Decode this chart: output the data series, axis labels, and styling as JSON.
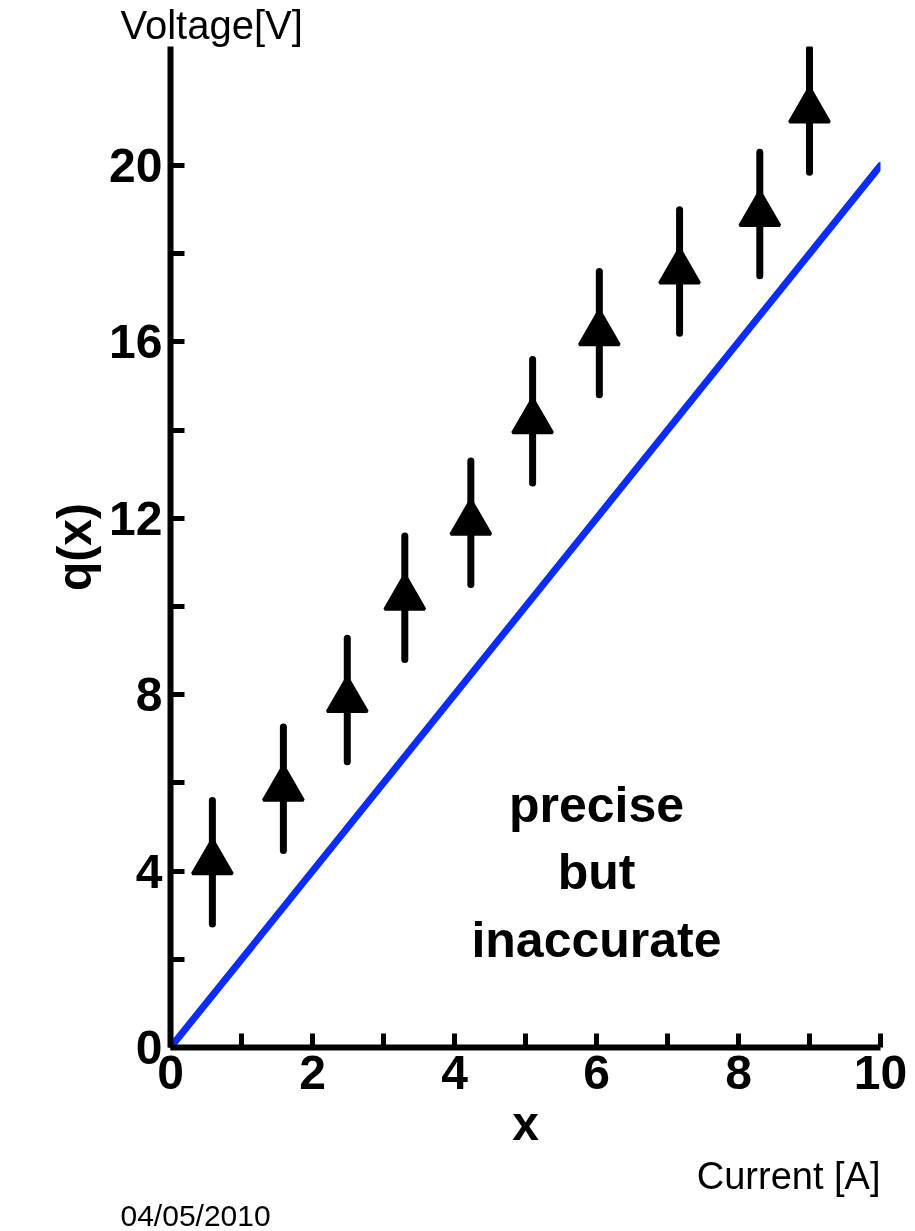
{
  "chart_data": {
    "type": "scatter",
    "xlabel": "x",
    "ylabel": "q(x)",
    "xlim": [
      0,
      10
    ],
    "ylim": [
      0,
      22.7
    ],
    "xticks": [
      0,
      {
        "value": 1,
        "label": null
      },
      2,
      {
        "value": 3,
        "label": null
      },
      4,
      {
        "value": 5,
        "label": null
      },
      6,
      {
        "value": 7,
        "label": null
      },
      8,
      {
        "value": 9,
        "label": null
      },
      10
    ],
    "yticks": [
      0,
      {
        "value": 2,
        "label": null
      },
      4,
      {
        "value": 6,
        "label": null
      },
      8,
      {
        "value": 10,
        "label": null
      },
      12,
      {
        "value": 14,
        "label": null
      },
      16,
      {
        "value": 18,
        "label": null
      },
      20
    ],
    "grid": false,
    "series": [
      {
        "type": "line",
        "color": "#0a2cff",
        "x": [
          0,
          10
        ],
        "values": [
          0,
          20
        ],
        "line_style": "solid"
      },
      {
        "type": "scatter",
        "marker": "triangle",
        "color": "#000000",
        "x": [
          0.59,
          1.59,
          2.49,
          3.3,
          4.23,
          5.1,
          6.04,
          7.17,
          8.3,
          9.0
        ],
        "values": [
          4.2,
          5.87,
          7.88,
          10.2,
          11.9,
          14.2,
          16.2,
          17.6,
          18.9,
          21.25
        ],
        "errors": [
          1.4,
          1.4,
          1.4,
          1.4,
          1.4,
          1.4,
          1.4,
          1.4,
          1.4,
          1.4
        ]
      }
    ],
    "annotations": [
      "Voltage[V]",
      "Current [A]",
      "04/05/2010",
      "precise\nbut\ninaccurate"
    ]
  }
}
